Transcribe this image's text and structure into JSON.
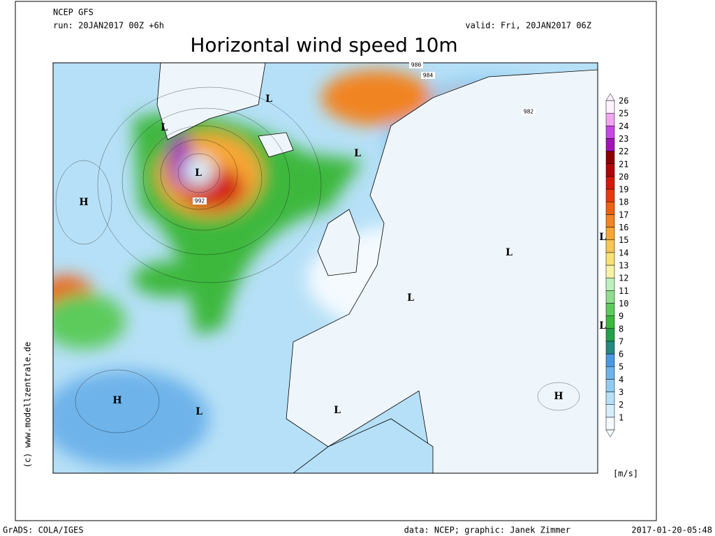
{
  "header": {
    "model": "NCEP GFS",
    "run": "run: 20JAN2017 00Z +6h",
    "valid": "valid: Fri, 20JAN2017 06Z",
    "title": "Horizontal wind speed 10m"
  },
  "colorbar": {
    "levels": [
      1,
      2,
      3,
      4,
      5,
      6,
      7,
      8,
      9,
      10,
      11,
      12,
      13,
      14,
      15,
      16,
      17,
      18,
      19,
      20,
      21,
      22,
      23,
      24,
      25,
      26
    ],
    "colors": [
      "#f4faff",
      "#d6eefb",
      "#b6e0f7",
      "#92cbf1",
      "#6eb3ea",
      "#4b98e2",
      "#258a80",
      "#24a04a",
      "#3cb83c",
      "#5ccb5c",
      "#8fdd8f",
      "#bdefbd",
      "#f6f2a6",
      "#f8e278",
      "#f8c656",
      "#f7a634",
      "#f18424",
      "#ee6014",
      "#e63a0e",
      "#d21a0a",
      "#b00606",
      "#8c0000",
      "#a312b6",
      "#c848e4",
      "#f2a6f2",
      "#fff2ff"
    ],
    "unit": "[m/s]"
  },
  "map": {
    "centers": [
      "H",
      "L",
      "L",
      "L",
      "L",
      "L",
      "L",
      "L",
      "L",
      "H",
      "H",
      "L",
      "L"
    ],
    "isobar_labels": [
      "992",
      "984",
      "982",
      "980"
    ]
  },
  "credit": "(c) www.modellzentrale.de",
  "footer": {
    "left": "GrADS: COLA/IGES",
    "center": "data: NCEP; graphic: Janek Zimmer",
    "right": "2017-01-20-05:48"
  }
}
